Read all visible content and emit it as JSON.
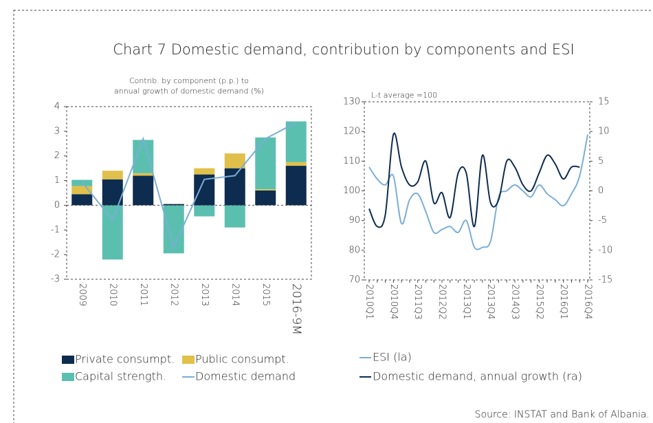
{
  "title": "Chart 7 Domestic demand, contribution by components and ESI",
  "source": "Source: INSTAT and Bank of Albania.",
  "chart_data": [
    {
      "type": "stacked_bar",
      "subtitle_lines": [
        "Contrib. by component (p.p.) to",
        "annual growth of domestic demand (%)"
      ],
      "categories": [
        "2009",
        "2010",
        "2011",
        "2012",
        "2013",
        "2014",
        "2015",
        "2016-9M"
      ],
      "series": [
        {
          "name": "Private consumpt.",
          "color": "#0d2c4f",
          "values": [
            0.45,
            1.05,
            1.2,
            0.05,
            1.25,
            1.5,
            0.6,
            1.6
          ]
        },
        {
          "name": "Public consumpt.",
          "color": "#e0c04a",
          "values": [
            0.33,
            0.35,
            0.1,
            0,
            0.25,
            0.6,
            0.05,
            0.15
          ]
        },
        {
          "name": "Capital strength.",
          "color": "#5bbfb0",
          "values": [
            0.25,
            -2.2,
            1.35,
            -1.95,
            -0.45,
            -0.9,
            2.1,
            1.65
          ]
        },
        {
          "name": "Domestic demand",
          "color": "#7aaed6",
          "kind": "line",
          "values": [
            0.95,
            -0.6,
            2.7,
            -1.7,
            1.05,
            1.2,
            2.7,
            3.35
          ]
        }
      ],
      "ylim": [
        -3,
        4
      ],
      "yticks": [
        -3,
        -2,
        -1,
        0,
        1,
        2,
        3,
        4
      ]
    },
    {
      "type": "line",
      "annotation": "L-t average =100",
      "categories": [
        "2010Q1",
        null,
        null,
        "2010Q4",
        null,
        null,
        "2011Q3",
        null,
        null,
        "2012Q2",
        null,
        null,
        "2013Q1",
        null,
        null,
        "2013Q4",
        null,
        null,
        "2014Q3",
        null,
        null,
        "2015Q2",
        null,
        null,
        "2016Q1",
        null,
        null,
        "2016Q4"
      ],
      "series": [
        {
          "name": "ESI (la)",
          "color": "#7aaed6",
          "axis": "y",
          "values": [
            108,
            104,
            102,
            105,
            89,
            97,
            99,
            93,
            86,
            87,
            88,
            86,
            90,
            81,
            81,
            83,
            98,
            100,
            102,
            100,
            98,
            102,
            99,
            97,
            95,
            99,
            105,
            119
          ]
        },
        {
          "name": "Domestic demand, annual growth (ra)",
          "color": "#0d2c4f",
          "axis": "y2",
          "values": [
            -3,
            -6,
            -4,
            9.5,
            4,
            1,
            1.5,
            5,
            -2,
            -0.3,
            -4.5,
            3,
            3,
            -6,
            6,
            -2,
            -1.5,
            5,
            4,
            1,
            0,
            3,
            6,
            4.5,
            2,
            4,
            4,
            null
          ]
        }
      ],
      "ylim": [
        70,
        130
      ],
      "yticks": [
        70,
        80,
        90,
        100,
        110,
        120,
        130
      ],
      "y2lim": [
        -15,
        15
      ],
      "y2ticks": [
        -15,
        -10,
        -5,
        0,
        5,
        10,
        15
      ]
    }
  ]
}
